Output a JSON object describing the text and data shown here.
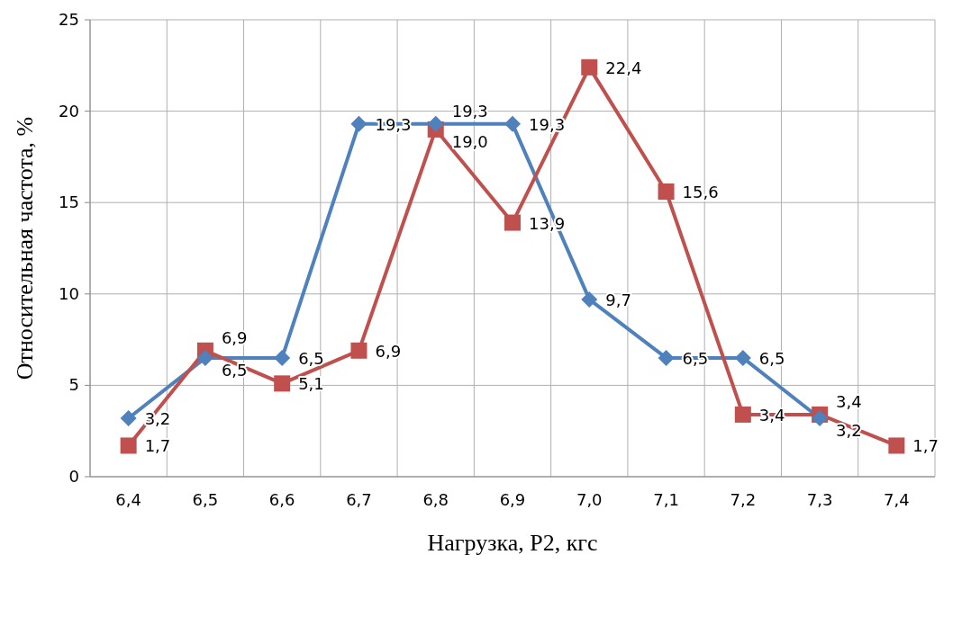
{
  "chart_data": {
    "type": "line",
    "xlabel": "Нагрузка, P2, кгс",
    "ylabel": "Относительная частота, %",
    "categories": [
      "6,4",
      "6,5",
      "6,6",
      "6,7",
      "6,8",
      "6,9",
      "7,0",
      "7,1",
      "7,2",
      "7,3",
      "7,4"
    ],
    "series": [
      {
        "color": "#4f81bd",
        "marker": "diamond",
        "values": [
          3.2,
          6.5,
          6.5,
          19.3,
          19.3,
          19.3,
          9.7,
          6.5,
          6.5,
          3.2,
          null
        ],
        "value_labels": [
          "3,2",
          "6,5",
          "6,5",
          "19,3",
          "19,3",
          "19,3",
          "9,7",
          "6,5",
          "6,5",
          "3,2",
          null
        ]
      },
      {
        "color": "#c0504d",
        "marker": "square",
        "values": [
          1.7,
          6.9,
          5.1,
          6.9,
          19.0,
          13.9,
          22.4,
          15.6,
          3.4,
          3.4,
          1.7
        ],
        "value_labels": [
          "1,7",
          "6,9",
          "5,1",
          "6,9",
          "19,0",
          "13,9",
          "22,4",
          "15,6",
          "3,4",
          "3,4",
          "1,7"
        ]
      }
    ],
    "ylim": [
      0,
      25
    ],
    "yticks": [
      0,
      5,
      10,
      15,
      20,
      25
    ],
    "grid": true,
    "line_style": "solid"
  }
}
